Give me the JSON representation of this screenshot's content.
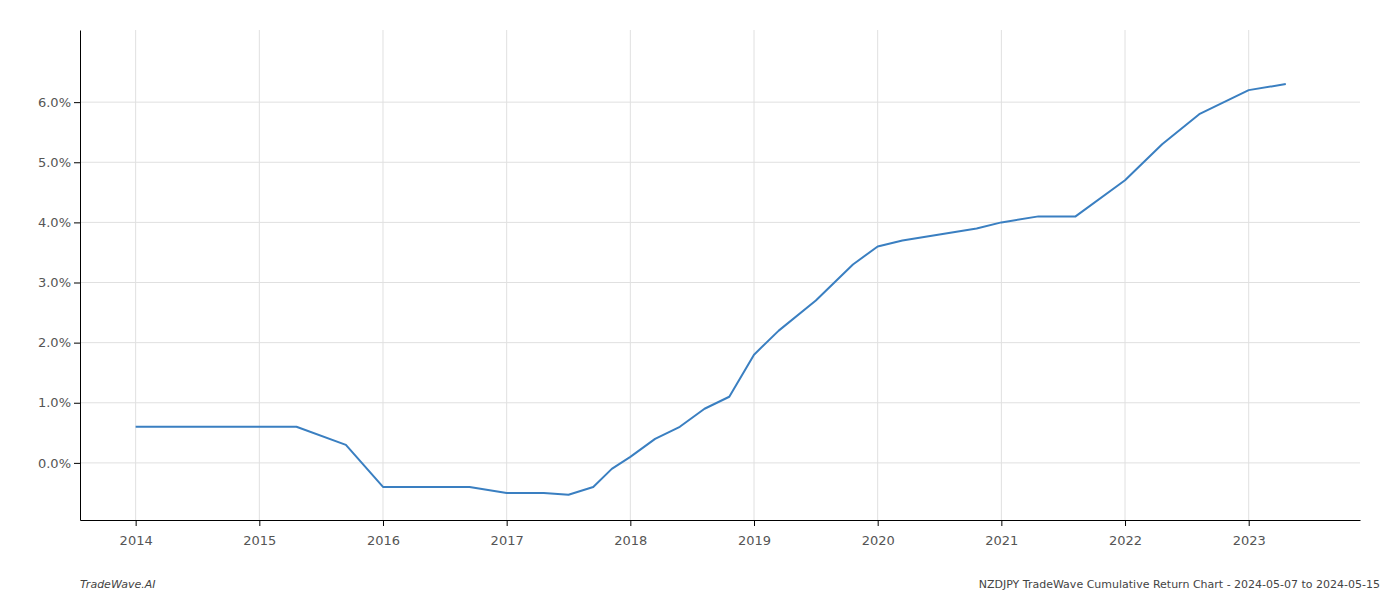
{
  "chart_data": {
    "type": "line",
    "x": [
      2014.0,
      2014.3,
      2014.6,
      2015.0,
      2015.3,
      2015.7,
      2016.0,
      2016.3,
      2016.7,
      2017.0,
      2017.3,
      2017.5,
      2017.7,
      2017.85,
      2018.0,
      2018.2,
      2018.4,
      2018.6,
      2018.8,
      2019.0,
      2019.2,
      2019.5,
      2019.8,
      2020.0,
      2020.2,
      2020.5,
      2020.8,
      2021.0,
      2021.3,
      2021.6,
      2022.0,
      2022.3,
      2022.6,
      2023.0,
      2023.3
    ],
    "values": [
      0.006,
      0.006,
      0.006,
      0.006,
      0.006,
      0.003,
      -0.004,
      -0.004,
      -0.004,
      -0.005,
      -0.005,
      -0.0053,
      -0.004,
      -0.001,
      0.001,
      0.004,
      0.006,
      0.009,
      0.011,
      0.018,
      0.022,
      0.027,
      0.033,
      0.036,
      0.037,
      0.038,
      0.039,
      0.04,
      0.041,
      0.041,
      0.047,
      0.053,
      0.058,
      0.062,
      0.063
    ],
    "color": "#3a7fc1",
    "xlim": [
      2013.55,
      2023.9
    ],
    "ylim": [
      -0.0095,
      0.072
    ],
    "xticks": [
      2014,
      2015,
      2016,
      2017,
      2018,
      2019,
      2020,
      2021,
      2022,
      2023
    ],
    "yticks": [
      {
        "value": 0.0,
        "label": "0.0%"
      },
      {
        "value": 0.01,
        "label": "1.0%"
      },
      {
        "value": 0.02,
        "label": "2.0%"
      },
      {
        "value": 0.03,
        "label": "3.0%"
      },
      {
        "value": 0.04,
        "label": "4.0%"
      },
      {
        "value": 0.05,
        "label": "5.0%"
      },
      {
        "value": 0.06,
        "label": "6.0%"
      }
    ],
    "grid": true,
    "annotations": [
      "TradeWave.AI",
      "NZDJPY TradeWave Cumulative Return Chart - 2024-05-07 to 2024-05-15"
    ]
  }
}
